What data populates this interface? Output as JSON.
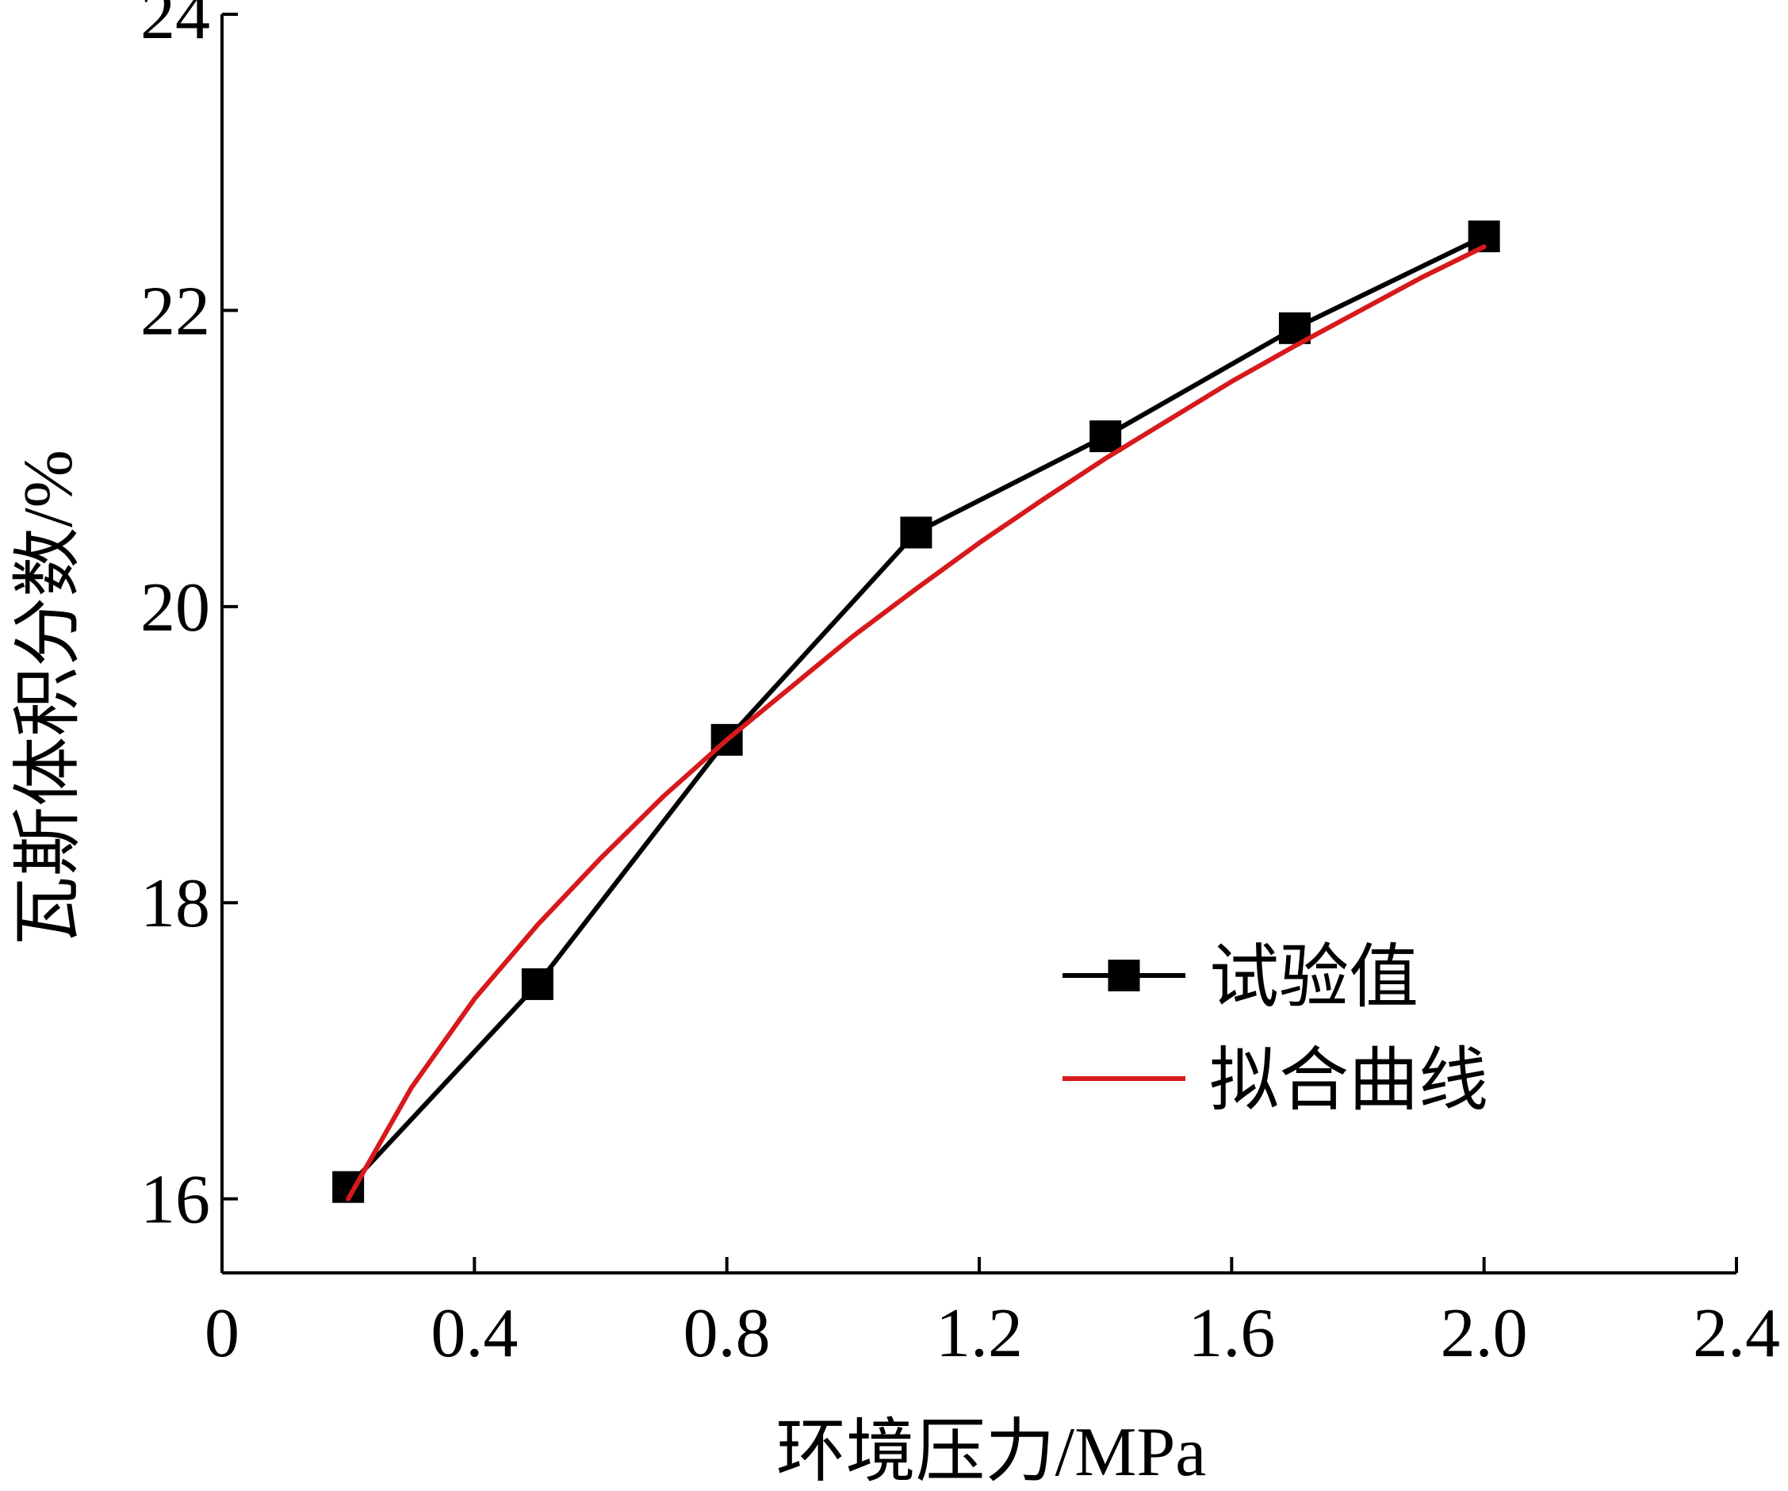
{
  "chart_data": {
    "type": "line",
    "xlabel": "环境压力/MPa",
    "ylabel": "瓦斯体积分数/%",
    "xlim": [
      0,
      2.4
    ],
    "ylim": [
      15.5,
      24
    ],
    "x_ticks": [
      {
        "value": 0,
        "label": "0"
      },
      {
        "value": 0.4,
        "label": "0.4"
      },
      {
        "value": 0.8,
        "label": "0.8"
      },
      {
        "value": 1.2,
        "label": "1.2"
      },
      {
        "value": 1.6,
        "label": "1.6"
      },
      {
        "value": 2.0,
        "label": "2.0"
      },
      {
        "value": 2.4,
        "label": "2.4"
      }
    ],
    "y_ticks": [
      {
        "value": 16,
        "label": "16"
      },
      {
        "value": 18,
        "label": "18"
      },
      {
        "value": 20,
        "label": "20"
      },
      {
        "value": 22,
        "label": "22"
      },
      {
        "value": 24,
        "label": "24"
      }
    ],
    "grid": false,
    "legend_position": "bottom-right",
    "series": [
      {
        "name": "试验值",
        "style": "line-markers",
        "color": "#000000",
        "marker": "square",
        "points": [
          {
            "x": 0.2,
            "y": 16.08
          },
          {
            "x": 0.5,
            "y": 17.45
          },
          {
            "x": 0.8,
            "y": 19.1
          },
          {
            "x": 1.1,
            "y": 20.5
          },
          {
            "x": 1.4,
            "y": 21.15
          },
          {
            "x": 1.7,
            "y": 21.88
          },
          {
            "x": 2.0,
            "y": 22.5
          }
        ]
      },
      {
        "name": "拟合曲线",
        "style": "line",
        "color": "#d7191c",
        "points": [
          {
            "x": 0.2,
            "y": 16.0
          },
          {
            "x": 0.3,
            "y": 16.75
          },
          {
            "x": 0.4,
            "y": 17.35
          },
          {
            "x": 0.5,
            "y": 17.85
          },
          {
            "x": 0.6,
            "y": 18.3
          },
          {
            "x": 0.7,
            "y": 18.72
          },
          {
            "x": 0.8,
            "y": 19.1
          },
          {
            "x": 0.9,
            "y": 19.45
          },
          {
            "x": 1.0,
            "y": 19.8
          },
          {
            "x": 1.1,
            "y": 20.12
          },
          {
            "x": 1.2,
            "y": 20.43
          },
          {
            "x": 1.3,
            "y": 20.72
          },
          {
            "x": 1.4,
            "y": 21.0
          },
          {
            "x": 1.5,
            "y": 21.26
          },
          {
            "x": 1.6,
            "y": 21.52
          },
          {
            "x": 1.7,
            "y": 21.76
          },
          {
            "x": 1.8,
            "y": 21.99
          },
          {
            "x": 1.9,
            "y": 22.22
          },
          {
            "x": 2.0,
            "y": 22.43
          }
        ]
      }
    ]
  }
}
